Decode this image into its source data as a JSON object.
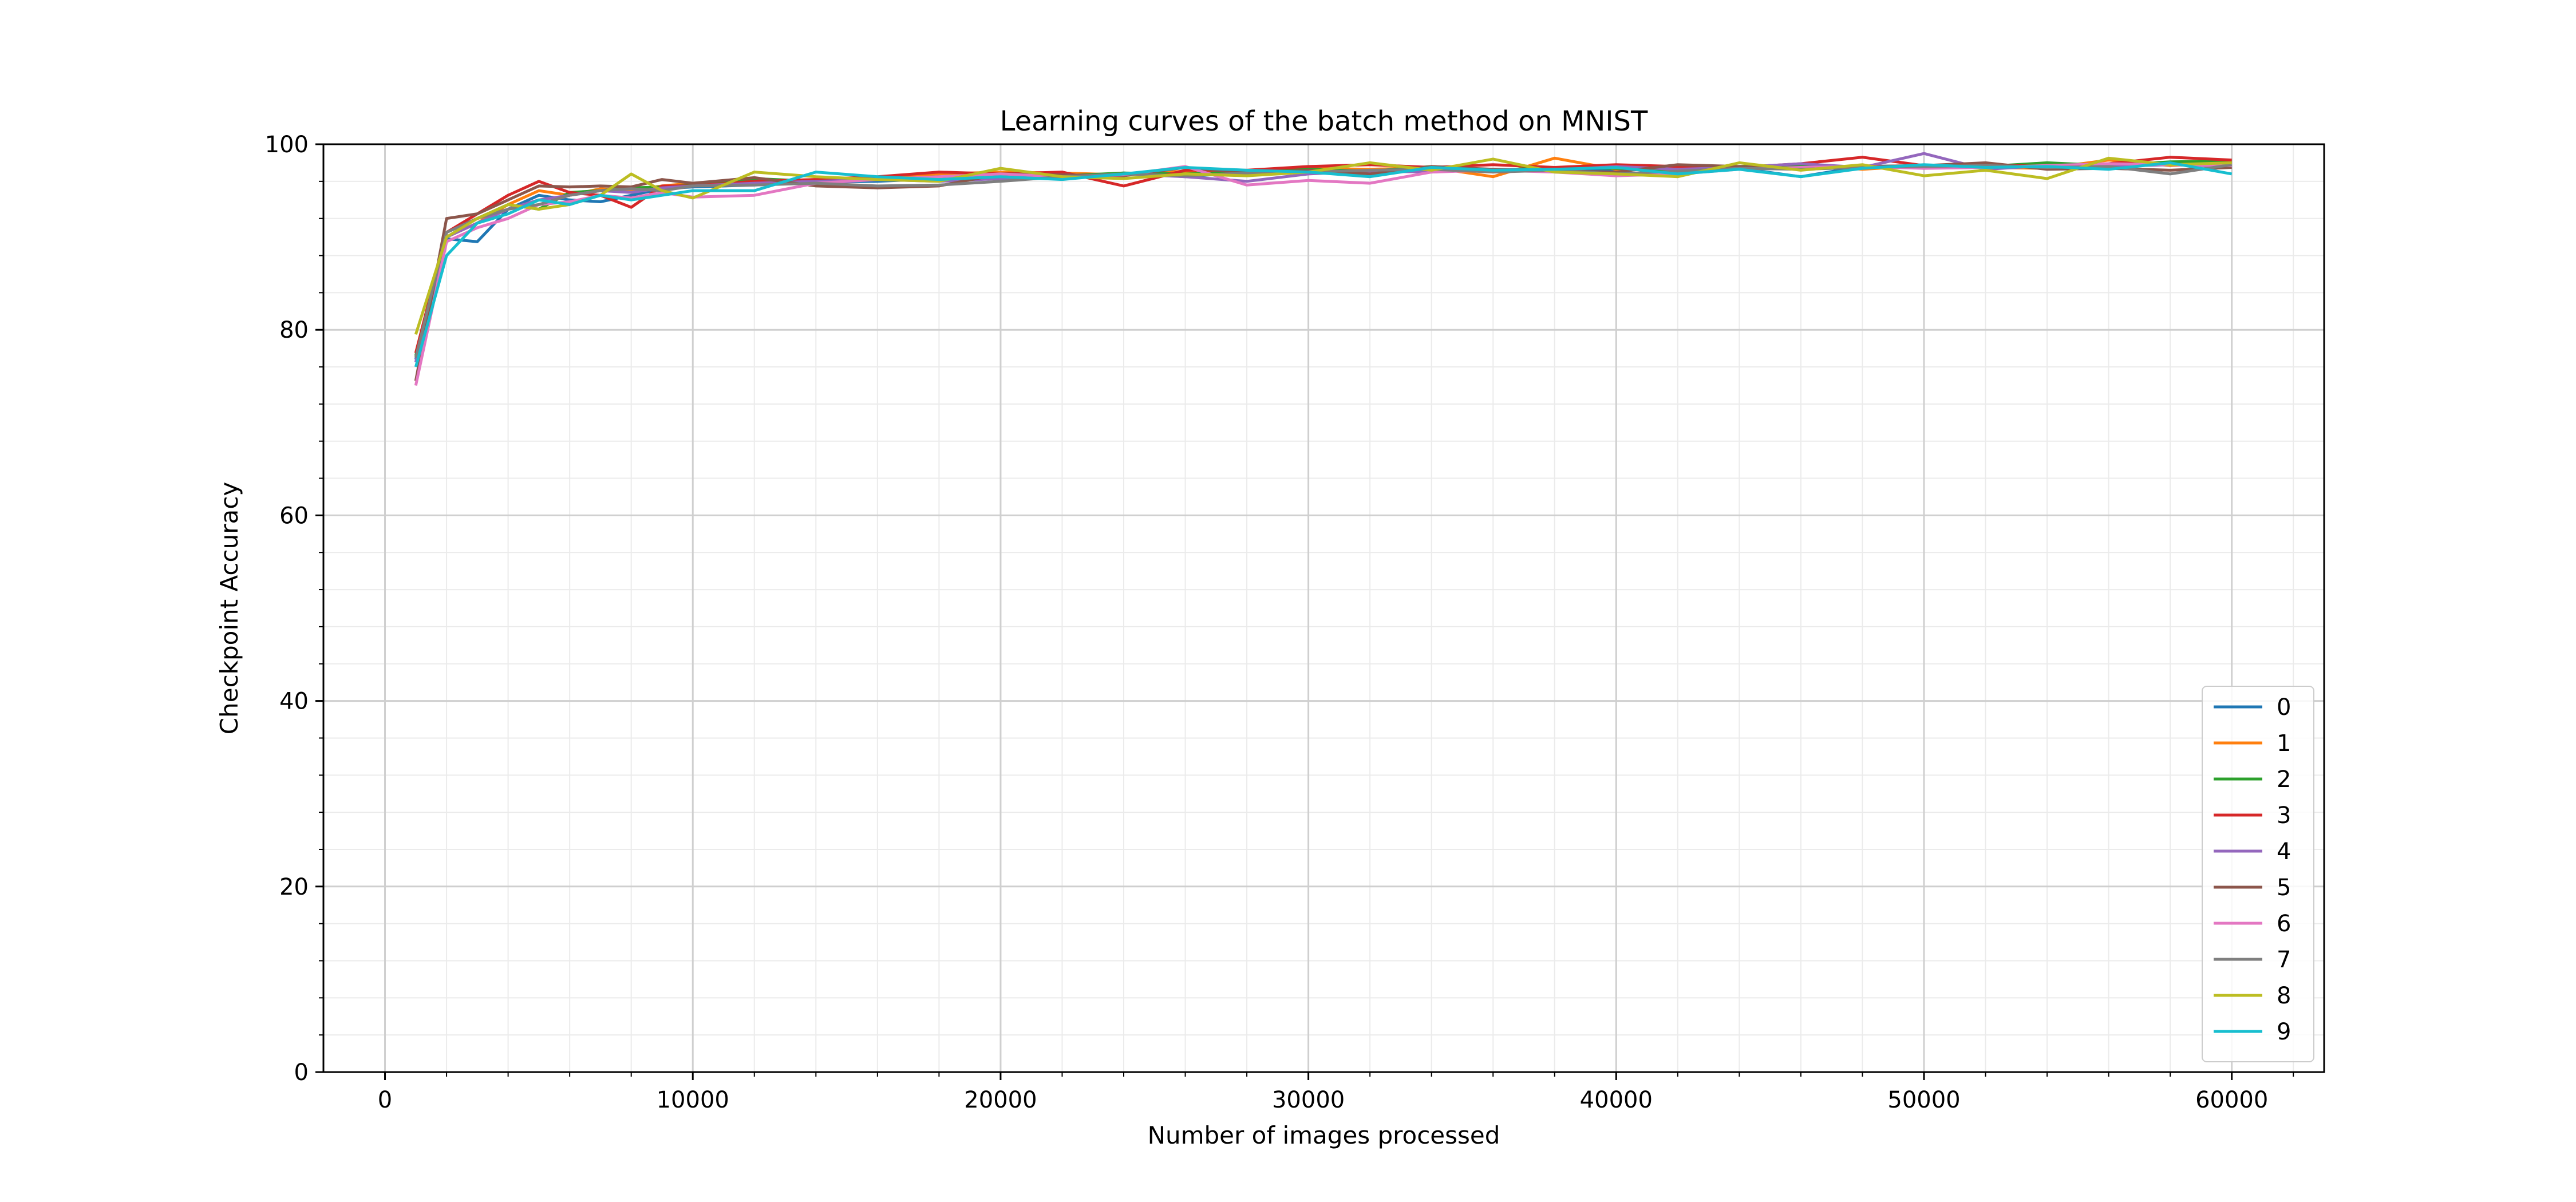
{
  "chart_data": {
    "type": "line",
    "title": "Learning curves of the batch method on MNIST",
    "xlabel": "Number of images processed",
    "ylabel": "Checkpoint Accuracy",
    "xlim": [
      -2000,
      63000
    ],
    "ylim": [
      0,
      100
    ],
    "xticks": [
      0,
      10000,
      20000,
      30000,
      40000,
      50000,
      60000
    ],
    "yticks": [
      0,
      20,
      40,
      60,
      80,
      100
    ],
    "grid": "major and minor",
    "legend_position": "lower-right",
    "x": [
      1000,
      2000,
      3000,
      4000,
      5000,
      6000,
      7000,
      8000,
      9000,
      10000,
      12000,
      14000,
      16000,
      18000,
      20000,
      22000,
      24000,
      26000,
      28000,
      30000,
      32000,
      34000,
      36000,
      38000,
      40000,
      42000,
      44000,
      46000,
      48000,
      50000,
      52000,
      54000,
      56000,
      58000,
      60000
    ],
    "series": [
      {
        "name": "0",
        "color": "#1f77b4",
        "values": [
          76.8,
          89.8,
          89.5,
          93.0,
          94.5,
          94.0,
          93.8,
          94.5,
          95.2,
          95.4,
          95.6,
          95.9,
          96.0,
          96.3,
          96.5,
          96.5,
          96.9,
          96.5,
          97.0,
          97.1,
          97.0,
          97.4,
          97.3,
          97.1,
          97.3,
          97.6,
          97.4,
          96.5,
          97.6,
          97.7,
          97.5,
          97.9,
          97.7,
          97.8,
          98.0
        ]
      },
      {
        "name": "1",
        "color": "#ff7f0e",
        "values": [
          77.5,
          90.0,
          91.5,
          93.5,
          95.0,
          94.5,
          95.2,
          95.0,
          95.5,
          95.8,
          96.0,
          96.2,
          96.3,
          96.8,
          97.0,
          96.9,
          96.7,
          97.1,
          97.0,
          97.4,
          97.3,
          97.5,
          96.5,
          98.5,
          97.3,
          97.5,
          97.6,
          97.8,
          97.3,
          97.7,
          97.5,
          97.4,
          98.3,
          97.7,
          98.0
        ]
      },
      {
        "name": "2",
        "color": "#2ca02c",
        "values": [
          77.2,
          90.5,
          92.0,
          93.5,
          93.0,
          94.8,
          95.0,
          95.3,
          95.4,
          95.6,
          96.3,
          96.0,
          96.2,
          96.5,
          96.8,
          96.6,
          96.9,
          96.8,
          97.0,
          97.3,
          97.1,
          97.6,
          97.2,
          97.5,
          97.4,
          97.2,
          97.6,
          97.8,
          97.5,
          97.7,
          97.6,
          98.0,
          97.7,
          98.1,
          98.2
        ]
      },
      {
        "name": "3",
        "color": "#d62728",
        "values": [
          77.5,
          90.5,
          92.5,
          94.5,
          96.0,
          94.8,
          94.5,
          93.2,
          95.5,
          95.5,
          96.0,
          96.2,
          96.5,
          97.0,
          96.8,
          97.0,
          95.5,
          97.2,
          97.2,
          97.6,
          97.8,
          97.5,
          97.8,
          97.5,
          97.8,
          97.6,
          97.5,
          97.9,
          98.6,
          97.7,
          97.8,
          97.6,
          97.9,
          98.6,
          98.3
        ]
      },
      {
        "name": "4",
        "color": "#9467bd",
        "values": [
          76.5,
          90.0,
          91.5,
          93.0,
          94.0,
          94.5,
          95.0,
          94.8,
          95.3,
          95.5,
          95.8,
          96.0,
          96.2,
          96.0,
          96.3,
          96.5,
          96.8,
          96.5,
          96.0,
          96.8,
          97.1,
          97.0,
          97.3,
          97.2,
          97.6,
          97.3,
          97.5,
          97.9,
          97.5,
          99.0,
          97.3,
          97.7,
          97.6,
          97.8,
          97.6
        ]
      },
      {
        "name": "5",
        "color": "#8c564b",
        "values": [
          74.5,
          92.0,
          92.5,
          94.0,
          95.5,
          95.4,
          95.5,
          95.4,
          96.2,
          95.8,
          96.4,
          95.5,
          95.3,
          95.5,
          96.8,
          96.7,
          96.6,
          97.5,
          96.9,
          97.2,
          96.8,
          97.6,
          97.3,
          97.1,
          97.0,
          97.8,
          97.6,
          97.3,
          97.6,
          97.7,
          98.0,
          97.3,
          97.4,
          97.2,
          97.5
        ]
      },
      {
        "name": "6",
        "color": "#e377c2",
        "values": [
          74.0,
          89.5,
          91.0,
          92.0,
          93.5,
          93.8,
          94.5,
          94.2,
          94.8,
          94.3,
          94.5,
          95.8,
          96.2,
          96.5,
          96.8,
          96.5,
          96.7,
          97.6,
          95.6,
          96.1,
          95.8,
          97.0,
          97.2,
          97.0,
          96.6,
          96.8,
          97.3,
          97.5,
          97.6,
          97.4,
          97.5,
          97.7,
          97.9,
          97.8,
          97.7
        ]
      },
      {
        "name": "7",
        "color": "#7f7f7f",
        "values": [
          77.0,
          90.5,
          92.0,
          93.0,
          93.5,
          94.5,
          95.0,
          95.2,
          95.0,
          95.5,
          95.6,
          95.8,
          95.5,
          95.6,
          96.0,
          96.5,
          96.8,
          96.6,
          96.9,
          97.0,
          97.2,
          97.3,
          97.0,
          97.2,
          96.8,
          97.1,
          97.4,
          97.3,
          97.5,
          97.6,
          97.7,
          97.5,
          97.6,
          96.8,
          97.8
        ]
      },
      {
        "name": "8",
        "color": "#bcbd22",
        "values": [
          79.5,
          90.0,
          92.0,
          93.5,
          93.0,
          93.5,
          94.5,
          96.8,
          95.0,
          94.2,
          97.0,
          96.5,
          96.2,
          96.0,
          97.4,
          96.5,
          96.3,
          96.8,
          96.6,
          97.0,
          98.0,
          97.2,
          98.4,
          97.0,
          96.8,
          96.5,
          98.0,
          97.2,
          97.8,
          96.6,
          97.2,
          96.3,
          98.5,
          97.8,
          98.0
        ]
      },
      {
        "name": "9",
        "color": "#17becf",
        "values": [
          76.0,
          88.0,
          91.5,
          92.5,
          94.0,
          93.5,
          94.5,
          94.0,
          94.5,
          95.0,
          95.0,
          97.0,
          96.5,
          96.2,
          96.5,
          96.2,
          96.8,
          97.5,
          97.2,
          97.0,
          96.5,
          97.5,
          97.2,
          97.3,
          97.5,
          96.8,
          97.3,
          96.5,
          97.4,
          97.8,
          97.5,
          97.6,
          97.3,
          98.0,
          96.8
        ]
      }
    ]
  }
}
